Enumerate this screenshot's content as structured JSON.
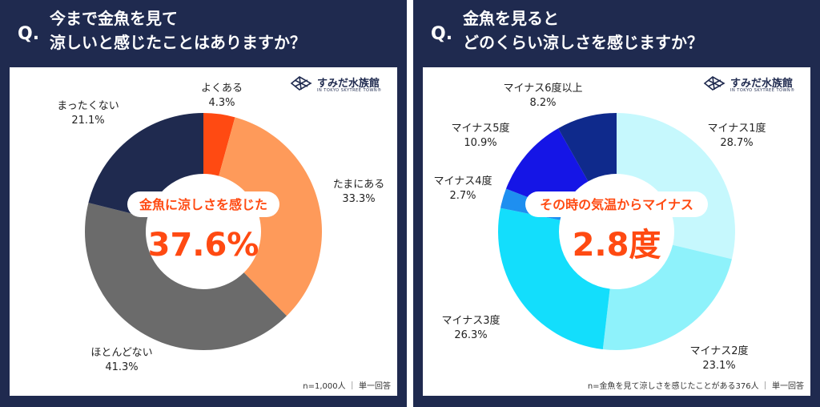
{
  "left_panel": {
    "q_mark": "Q.",
    "question_line1": "今まで金魚を見て",
    "question_line2": "涼しいと感じたことはありますか？",
    "logo_text": "すみだ水族館",
    "logo_sub": "IN TOKYO SKYTREE TOWN®",
    "center_label": "金魚に涼しさを感じた",
    "center_value": "37.6%",
    "note": "n=1,000人 ｜ 単一回答"
  },
  "right_panel": {
    "q_mark": "Q.",
    "question_line1": "金魚を見ると",
    "question_line2": "どのくらい涼しさを感じますか？",
    "logo_text": "すみだ水族館",
    "logo_sub": "IN TOKYO SKYTREE TOWN®",
    "center_label": "その時の気温からマイナス",
    "center_value": "2.8度",
    "note": "n=金魚を見て涼しさを感じたことがある376人 ｜ 単一回答"
  },
  "chart_data": [
    {
      "type": "pie",
      "title": "今まで金魚を見て涼しいと感じたことはありますか？",
      "categories": [
        "よくある",
        "たまにある",
        "ほとんどない",
        "まったくない"
      ],
      "values": [
        4.3,
        33.3,
        41.3,
        21.1
      ],
      "value_labels": [
        "4.3%",
        "33.3%",
        "41.3%",
        "21.1%"
      ],
      "colors": [
        "#ff4a12",
        "#fe9a5a",
        "#6b6b6b",
        "#1f2a4f"
      ]
    },
    {
      "type": "pie",
      "title": "金魚を見るとどのくらい涼しさを感じますか？",
      "categories": [
        "マイナス1度",
        "マイナス2度",
        "マイナス3度",
        "マイナス4度",
        "マイナス5度",
        "マイナス6度以上"
      ],
      "values": [
        28.7,
        23.1,
        26.3,
        2.7,
        10.9,
        8.2
      ],
      "value_labels": [
        "28.7%",
        "23.1%",
        "26.3%",
        "2.7%",
        "10.9%",
        "8.2%"
      ],
      "colors": [
        "#c6f8fd",
        "#8ef2fb",
        "#13defc",
        "#1e8ff0",
        "#1515e6",
        "#0f2a8c"
      ]
    }
  ]
}
